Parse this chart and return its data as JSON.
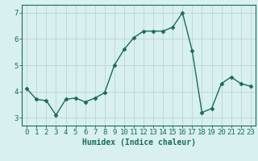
{
  "x": [
    0,
    1,
    2,
    3,
    4,
    5,
    6,
    7,
    8,
    9,
    10,
    11,
    12,
    13,
    14,
    15,
    16,
    17,
    18,
    19,
    20,
    21,
    22,
    23
  ],
  "y": [
    4.1,
    3.7,
    3.65,
    3.1,
    3.7,
    3.75,
    3.6,
    3.75,
    3.95,
    5.0,
    5.6,
    6.05,
    6.3,
    6.3,
    6.3,
    6.45,
    7.0,
    5.55,
    3.2,
    3.35,
    4.3,
    4.55,
    4.3,
    4.2
  ],
  "line_color": "#1a6b5a",
  "marker": "D",
  "markersize": 2.5,
  "linewidth": 1.0,
  "bg_color": "#d8f0f0",
  "grid_color": "#c0d8d8",
  "xlabel": "Humidex (Indice chaleur)",
  "xlim": [
    -0.5,
    23.5
  ],
  "ylim": [
    2.7,
    7.3
  ],
  "yticks": [
    3,
    4,
    5,
    6,
    7
  ],
  "xticks": [
    0,
    1,
    2,
    3,
    4,
    5,
    6,
    7,
    8,
    9,
    10,
    11,
    12,
    13,
    14,
    15,
    16,
    17,
    18,
    19,
    20,
    21,
    22,
    23
  ],
  "xlabel_fontsize": 7,
  "tick_fontsize": 6.5
}
